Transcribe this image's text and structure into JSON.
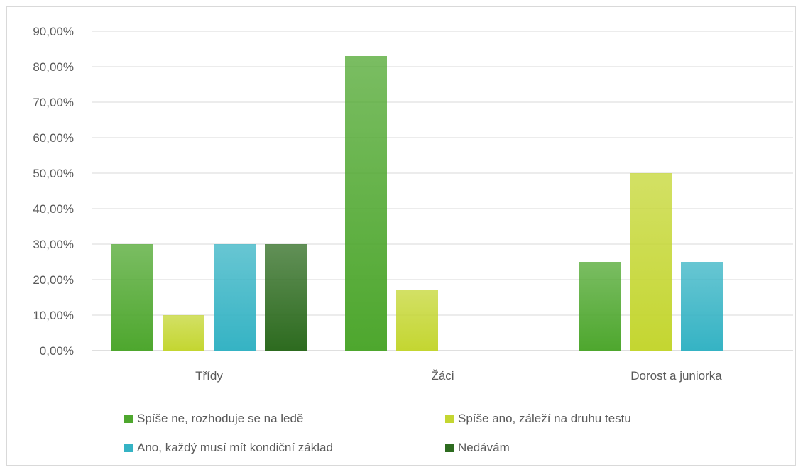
{
  "chart_data": {
    "type": "bar",
    "categories": [
      "Třídy",
      "Žáci",
      "Dorost a juniorka"
    ],
    "series": [
      {
        "name": "Spíše ne, rozhoduje se na ledě",
        "values": [
          30,
          83,
          25
        ],
        "color": "#4ea72e"
      },
      {
        "name": "Spíše ano, záleží na druhu testu",
        "values": [
          10,
          17,
          50
        ],
        "color": "#c4d631"
      },
      {
        "name": "Ano, každý musí mít kondiční základ",
        "values": [
          30,
          0,
          25
        ],
        "color": "#35b3c4"
      },
      {
        "name": "Nedávám",
        "values": [
          30,
          0,
          0
        ],
        "color": "#2d6b1f"
      }
    ],
    "yticks": [
      "0,00%",
      "10,00%",
      "20,00%",
      "30,00%",
      "40,00%",
      "50,00%",
      "60,00%",
      "70,00%",
      "80,00%",
      "90,00%"
    ],
    "ylim": [
      0,
      90
    ],
    "ylabel": "",
    "xlabel": "",
    "title": "",
    "grid": true,
    "legend_position": "bottom"
  }
}
